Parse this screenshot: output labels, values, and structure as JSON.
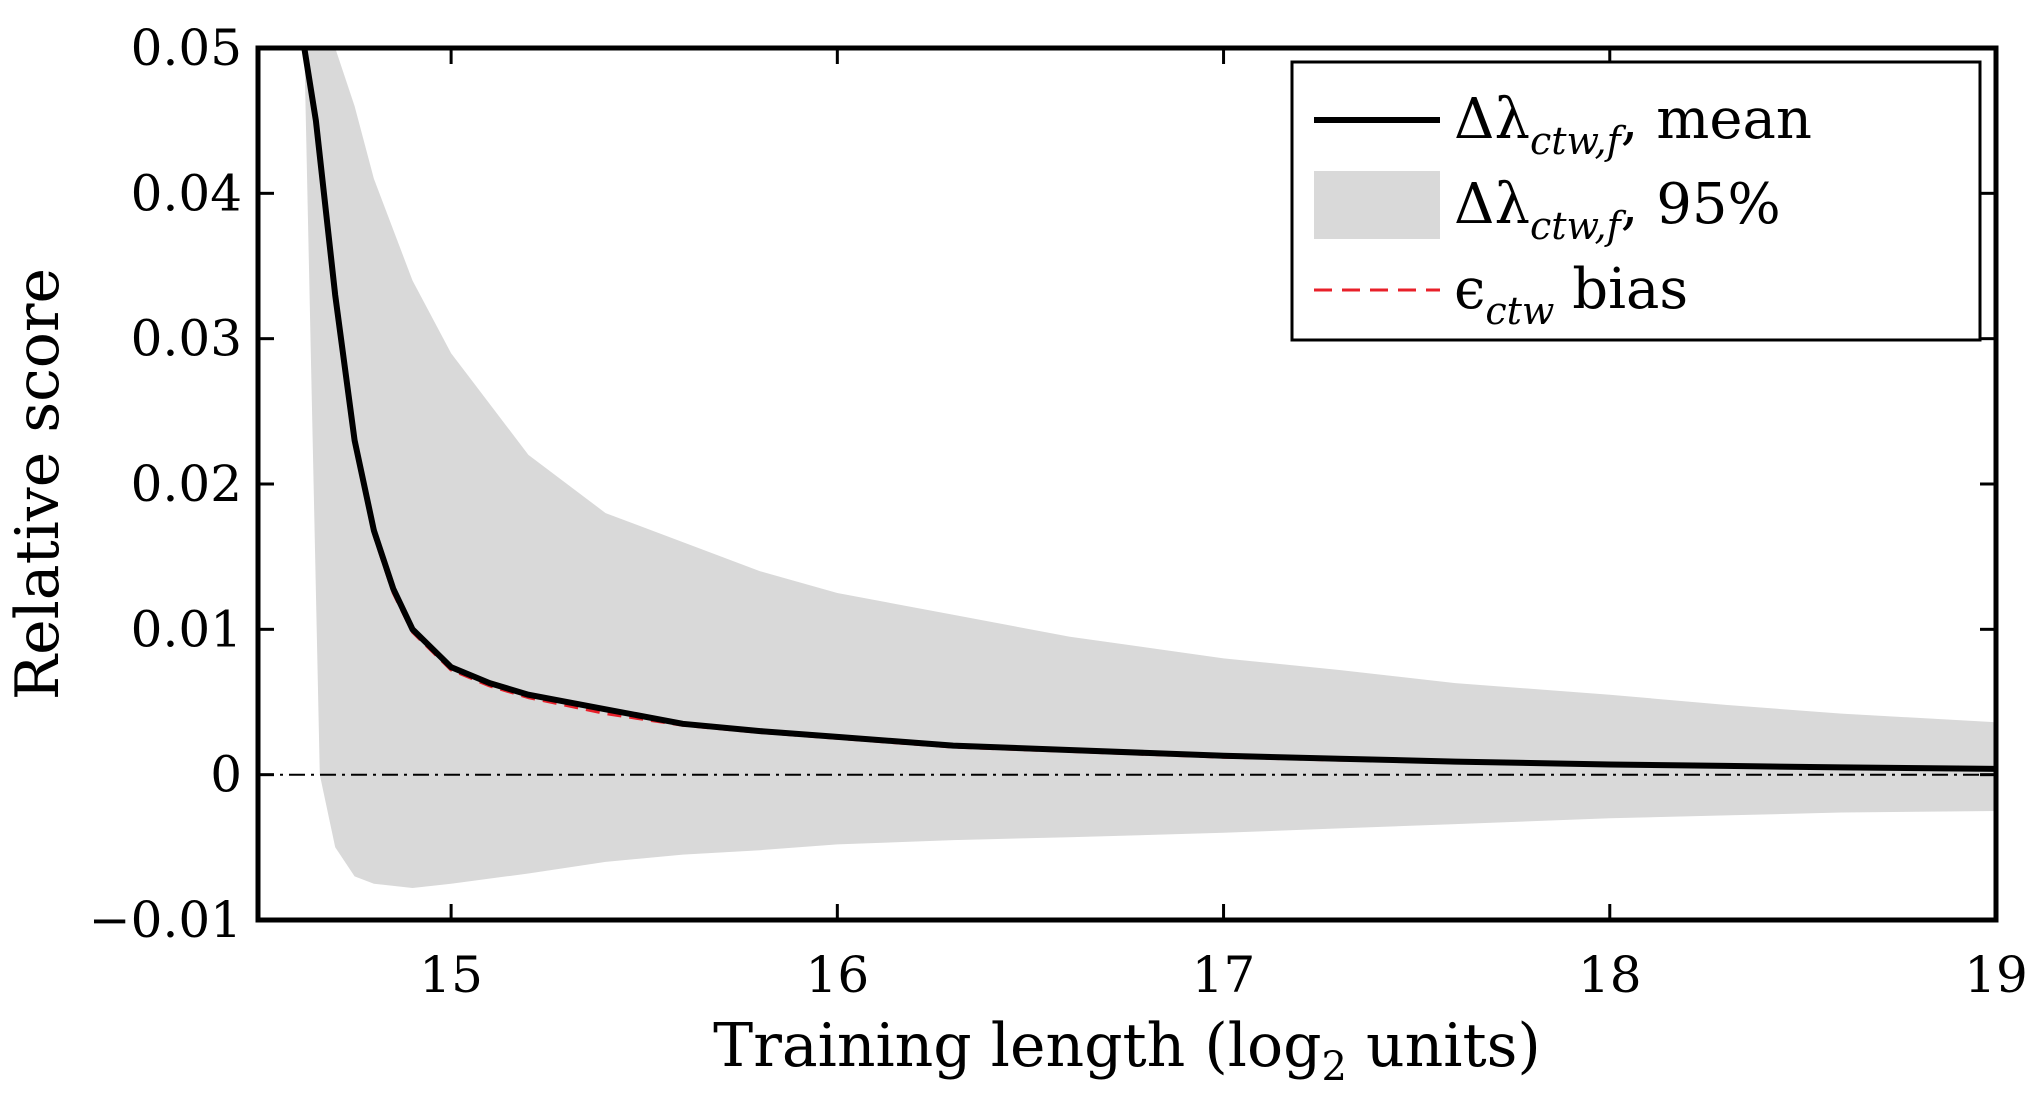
{
  "chart_data": {
    "type": "line",
    "xlabel": "Training length (log",
    "xlabel_sub": "2",
    "xlabel_end": " units)",
    "ylabel": "Relative score",
    "xlim": [
      14.5,
      19
    ],
    "ylim": [
      -0.01,
      0.05
    ],
    "xticks": [
      15,
      16,
      17,
      18,
      19
    ],
    "xtick_labels": [
      "15",
      "16",
      "17",
      "18",
      "19"
    ],
    "yticks": [
      -0.01,
      0,
      0.01,
      0.02,
      0.03,
      0.04,
      0.05
    ],
    "ytick_labels": [
      "−0.01",
      "0",
      "0.01",
      "0.02",
      "0.03",
      "0.04",
      "0.05"
    ],
    "grid": false,
    "legend_position": "top-right",
    "legend": [
      {
        "style": "solid-line",
        "color": "#000000",
        "main": "Δλ",
        "sub": "ctw,f",
        "tail": ", mean"
      },
      {
        "style": "filled-band",
        "color": "#d9d9d9",
        "main": "Δλ",
        "sub": "ctw,f",
        "tail": ", 95%"
      },
      {
        "style": "dashed-line",
        "color": "#e8202a",
        "main": "ϵ",
        "sub": "ctw",
        "tail": " bias"
      }
    ],
    "series": [
      {
        "style": "band",
        "color": "#d9d9d9",
        "x": [
          14.62,
          14.66,
          14.7,
          14.75,
          14.8,
          14.9,
          15.0,
          15.2,
          15.4,
          15.6,
          15.8,
          16.0,
          16.3,
          16.6,
          17.0,
          17.3,
          17.6,
          18.0,
          18.3,
          18.6,
          19.0
        ],
        "upper": [
          0.05,
          0.05,
          0.05,
          0.046,
          0.041,
          0.034,
          0.029,
          0.022,
          0.018,
          0.016,
          0.014,
          0.0125,
          0.011,
          0.0095,
          0.008,
          0.0072,
          0.0063,
          0.0055,
          0.0048,
          0.0042,
          0.0036
        ],
        "lower": [
          0.05,
          0.0,
          -0.005,
          -0.007,
          -0.0075,
          -0.0078,
          -0.0075,
          -0.0068,
          -0.006,
          -0.0055,
          -0.0052,
          -0.0048,
          -0.0045,
          -0.0043,
          -0.004,
          -0.0037,
          -0.0034,
          -0.003,
          -0.0028,
          -0.0026,
          -0.0025
        ]
      },
      {
        "style": "dashed",
        "color": "#e8202a",
        "x": [
          14.62,
          14.65,
          14.7,
          14.75,
          14.8,
          14.85,
          14.9,
          15.0,
          15.1,
          15.2,
          15.4,
          15.6,
          15.8,
          16.0,
          16.3,
          16.6,
          17.0,
          17.3,
          17.6,
          18.0,
          18.3,
          18.6,
          19.0
        ],
        "y": [
          0.05,
          0.045,
          0.033,
          0.023,
          0.0165,
          0.0125,
          0.0098,
          0.0072,
          0.0061,
          0.0053,
          0.0042,
          0.0034,
          0.0029,
          0.0025,
          0.0019,
          0.0016,
          0.0012,
          0.001,
          0.0009,
          0.0007,
          0.0006,
          0.0005,
          0.0004
        ]
      },
      {
        "style": "solid",
        "color": "#000000",
        "x": [
          14.62,
          14.65,
          14.7,
          14.75,
          14.8,
          14.85,
          14.9,
          15.0,
          15.1,
          15.2,
          15.4,
          15.6,
          15.8,
          16.0,
          16.3,
          16.6,
          17.0,
          17.3,
          17.6,
          18.0,
          18.3,
          18.6,
          19.0
        ],
        "y": [
          0.05,
          0.045,
          0.033,
          0.023,
          0.0168,
          0.0128,
          0.01,
          0.0074,
          0.0063,
          0.0055,
          0.0045,
          0.0035,
          0.003,
          0.0026,
          0.002,
          0.0017,
          0.0013,
          0.0011,
          0.0009,
          0.0007,
          0.0006,
          0.0005,
          0.0004
        ]
      },
      {
        "style": "dashdot",
        "color": "#000000",
        "x": [
          14.5,
          19.0
        ],
        "y": [
          0,
          0
        ]
      }
    ]
  }
}
